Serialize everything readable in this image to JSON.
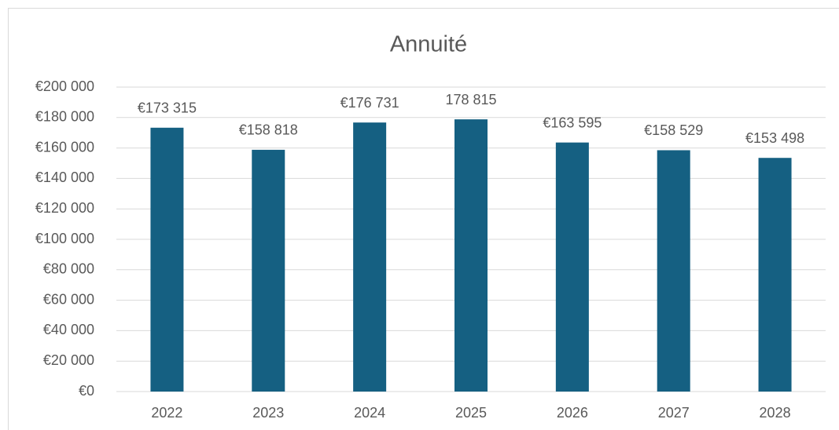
{
  "chart_data": {
    "type": "bar",
    "title": "Annuité",
    "categories": [
      "2022",
      "2023",
      "2024",
      "2025",
      "2026",
      "2027",
      "2028"
    ],
    "values": [
      173315,
      158818,
      176731,
      178815,
      163595,
      158529,
      153498
    ],
    "value_labels": [
      "€173 315",
      "€158 818",
      "€176 731",
      "178 815",
      "€163 595",
      "€158 529",
      "€153 498"
    ],
    "color": "#156082",
    "ylim": [
      0,
      200000
    ],
    "yticks": [
      {
        "value": 0,
        "label": "€0"
      },
      {
        "value": 20000,
        "label": "€20 000"
      },
      {
        "value": 40000,
        "label": "€40 000"
      },
      {
        "value": 60000,
        "label": "€60 000"
      },
      {
        "value": 80000,
        "label": "€80 000"
      },
      {
        "value": 100000,
        "label": "€100 000"
      },
      {
        "value": 120000,
        "label": "€120 000"
      },
      {
        "value": 140000,
        "label": "€140 000"
      },
      {
        "value": 160000,
        "label": "€160 000"
      },
      {
        "value": 180000,
        "label": "€180 000"
      },
      {
        "value": 200000,
        "label": "€200 000"
      }
    ],
    "grid": true
  }
}
